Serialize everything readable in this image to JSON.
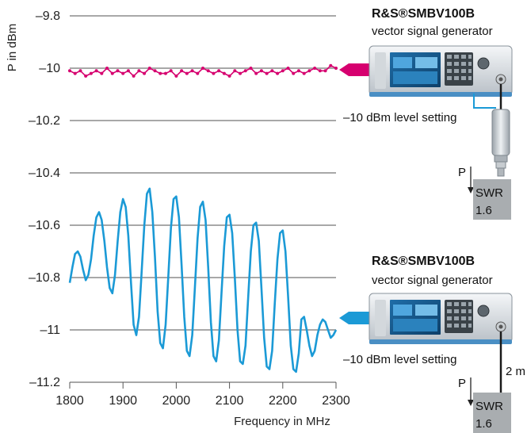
{
  "chart_data": {
    "type": "line",
    "xlabel": "Frequency in MHz",
    "ylabel": "P in dBm",
    "xlim": [
      1800,
      2300
    ],
    "ylim": [
      -11.2,
      -9.8
    ],
    "xticks": [
      "1800",
      "1900",
      "2000",
      "2100",
      "2200",
      "2300"
    ],
    "yticks": [
      "–9.8",
      "–10",
      "–10.2",
      "–10.4",
      "–10.6",
      "–10.8",
      "–11",
      "–11.2"
    ],
    "grid": true,
    "series": [
      {
        "color": "#d6006f",
        "marker": "dot",
        "x": [
          1800,
          1810,
          1820,
          1830,
          1840,
          1850,
          1860,
          1870,
          1880,
          1890,
          1900,
          1910,
          1920,
          1930,
          1940,
          1950,
          1960,
          1970,
          1980,
          1990,
          2000,
          2010,
          2020,
          2030,
          2040,
          2050,
          2060,
          2070,
          2080,
          2090,
          2100,
          2110,
          2120,
          2130,
          2140,
          2150,
          2160,
          2170,
          2180,
          2190,
          2200,
          2210,
          2220,
          2230,
          2240,
          2250,
          2260,
          2270,
          2280,
          2290,
          2300
        ],
        "values": [
          -10.01,
          -10.02,
          -10.01,
          -10.03,
          -10.02,
          -10.01,
          -10.02,
          -10.0,
          -10.02,
          -10.01,
          -10.02,
          -10.01,
          -10.03,
          -10.01,
          -10.02,
          -10.0,
          -10.01,
          -10.02,
          -10.02,
          -10.01,
          -10.03,
          -10.01,
          -10.02,
          -10.01,
          -10.02,
          -10.0,
          -10.01,
          -10.02,
          -10.01,
          -10.02,
          -10.03,
          -10.01,
          -10.02,
          -10.01,
          -10.0,
          -10.02,
          -10.01,
          -10.02,
          -10.01,
          -10.02,
          -10.01,
          -10.0,
          -10.02,
          -10.01,
          -10.02,
          -10.01,
          -10.0,
          -10.01,
          -10.01,
          -9.99,
          -10.0
        ]
      },
      {
        "color": "#1b9ad6",
        "marker": "none",
        "x": [
          1800,
          1805,
          1810,
          1815,
          1820,
          1825,
          1830,
          1835,
          1840,
          1845,
          1850,
          1855,
          1860,
          1865,
          1870,
          1875,
          1880,
          1885,
          1890,
          1895,
          1900,
          1905,
          1910,
          1915,
          1920,
          1925,
          1930,
          1935,
          1940,
          1945,
          1950,
          1955,
          1960,
          1965,
          1970,
          1975,
          1980,
          1985,
          1990,
          1995,
          2000,
          2005,
          2010,
          2015,
          2020,
          2025,
          2030,
          2035,
          2040,
          2045,
          2050,
          2055,
          2060,
          2065,
          2070,
          2075,
          2080,
          2085,
          2090,
          2095,
          2100,
          2105,
          2110,
          2115,
          2120,
          2125,
          2130,
          2135,
          2140,
          2145,
          2150,
          2155,
          2160,
          2165,
          2170,
          2175,
          2180,
          2185,
          2190,
          2195,
          2200,
          2205,
          2210,
          2215,
          2220,
          2225,
          2230,
          2235,
          2240,
          2245,
          2250,
          2255,
          2260,
          2265,
          2270,
          2275,
          2280,
          2285,
          2290,
          2295,
          2300
        ],
        "values": [
          -10.82,
          -10.76,
          -10.71,
          -10.7,
          -10.72,
          -10.77,
          -10.81,
          -10.79,
          -10.73,
          -10.64,
          -10.57,
          -10.55,
          -10.58,
          -10.66,
          -10.76,
          -10.84,
          -10.86,
          -10.79,
          -10.66,
          -10.55,
          -10.5,
          -10.53,
          -10.64,
          -10.82,
          -10.98,
          -11.02,
          -10.95,
          -10.78,
          -10.6,
          -10.48,
          -10.46,
          -10.55,
          -10.72,
          -10.93,
          -11.05,
          -11.07,
          -10.98,
          -10.8,
          -10.61,
          -10.5,
          -10.49,
          -10.57,
          -10.75,
          -10.95,
          -11.08,
          -11.1,
          -11.02,
          -10.84,
          -10.65,
          -10.53,
          -10.51,
          -10.58,
          -10.76,
          -10.97,
          -11.1,
          -11.12,
          -11.04,
          -10.86,
          -10.68,
          -10.57,
          -10.56,
          -10.63,
          -10.8,
          -11.0,
          -11.12,
          -11.13,
          -11.06,
          -10.88,
          -10.7,
          -10.6,
          -10.59,
          -10.66,
          -10.84,
          -11.03,
          -11.14,
          -11.15,
          -11.08,
          -10.9,
          -10.73,
          -10.63,
          -10.62,
          -10.7,
          -10.87,
          -11.06,
          -11.15,
          -11.16,
          -11.09,
          -10.96,
          -10.95,
          -11.0,
          -11.06,
          -11.1,
          -11.08,
          -11.02,
          -10.98,
          -10.96,
          -10.97,
          -11.0,
          -11.03,
          -11.02,
          -11.0
        ]
      }
    ]
  },
  "setups": [
    {
      "title": "R&S®SMBV100B",
      "subtitle": "vector signal generator",
      "level_note": "–10 dBm level setting",
      "power_label": "P",
      "swr_label": "SWR",
      "swr_value": "1.6"
    },
    {
      "title": "R&S®SMBV100B",
      "subtitle": "vector signal generator",
      "level_note": "–10 dBm level setting",
      "cable_note": "2 m",
      "power_label": "P",
      "swr_label": "SWR",
      "swr_value": "1.6"
    }
  ],
  "colors": {
    "magenta": "#d6006f",
    "blue": "#1b9ad6",
    "grid": "#a8a8a8",
    "swr_box": "#a9adb0"
  }
}
